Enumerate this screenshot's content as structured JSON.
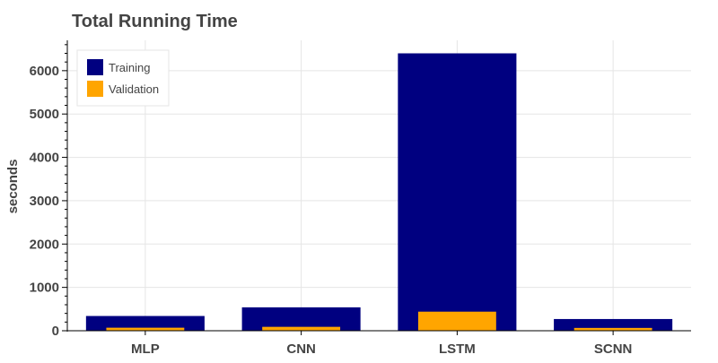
{
  "chart_data": {
    "type": "bar",
    "title": "Total Running Time",
    "xlabel": "",
    "ylabel": "seconds",
    "categories": [
      "MLP",
      "CNN",
      "LSTM",
      "SCNN"
    ],
    "series": [
      {
        "name": "Training",
        "values": [
          340,
          540,
          6400,
          270
        ],
        "color": "#000080"
      },
      {
        "name": "Validation",
        "values": [
          70,
          90,
          440,
          65
        ],
        "color": "#ffa500"
      }
    ],
    "ylim": [
      0,
      6700
    ],
    "yticks": [
      0,
      1000,
      2000,
      3000,
      4000,
      5000,
      6000
    ],
    "grid": true,
    "legend_position": "top-left"
  }
}
